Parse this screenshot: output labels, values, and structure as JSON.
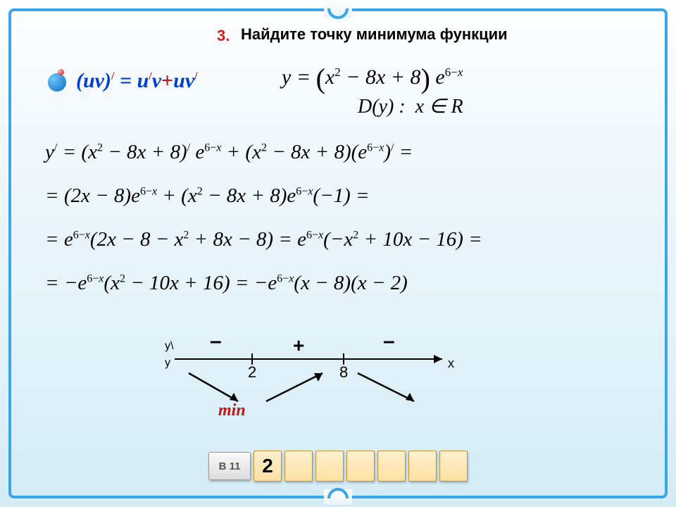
{
  "task": {
    "number": "3.",
    "title": "Найдите точку минимума функции"
  },
  "hint": {
    "formula_html": "(<i>uv</i>)<sup>/</sup> = <i>u</i><sup>/</sup><i>v</i><span class='plus'>+</span><i>uv</i><sup>/</sup>"
  },
  "function": {
    "expr_html": "<i>y</i> = <span class='paren'>(</span><i>x</i><sup>2</sup> − 8<i>x</i> + 8<span class='paren'>)</span> <i>e</i><sup>6−<i>x</i></sup>",
    "domain_html": "<i>D</i>(<i>y</i>) : &nbsp;<i>x</i> ∈ <i>R</i>"
  },
  "derivation": {
    "line1": "<i>y</i><sup>/</sup> = (<i>x</i><sup>2</sup> − 8<i>x</i> + 8)<sup>/</sup> <i>e</i><sup>6−<i>x</i></sup> + (<i>x</i><sup>2</sup> − 8<i>x</i> + 8)(<i>e</i><sup>6−<i>x</i></sup>)<sup>/</sup> =",
    "line2": "= (2<i>x</i> − 8)<i>e</i><sup>6−<i>x</i></sup> + (<i>x</i><sup>2</sup> − 8<i>x</i> + 8)<i>e</i><sup>6−<i>x</i></sup>(−1) =",
    "line3": "= <i>e</i><sup>6−<i>x</i></sup>(2<i>x</i> − 8 − <i>x</i><sup>2</sup> + 8<i>x</i> − 8) = <i>e</i><sup>6−<i>x</i></sup>(−<i>x</i><sup>2</sup> + 10<i>x</i> − 16) =",
    "line4": "= −<i>e</i><sup>6−<i>x</i></sup>(<i>x</i><sup>2</sup> − 10<i>x</i> + 16) = −<i>e</i><sup>6−<i>x</i></sup>(<i>x</i> − 8)(<i>x</i> − 2)"
  },
  "numberline": {
    "labels": {
      "yprime": "y\\",
      "y": "y",
      "x": "x"
    },
    "points": [
      "2",
      "8"
    ],
    "signs": [
      "–",
      "+",
      "–"
    ],
    "min_label": "min",
    "colors": {
      "axis": "#000000",
      "sign": "#000000",
      "min": "#c01818",
      "arrow": "#000000"
    }
  },
  "answer": {
    "button_label": "В 11",
    "cells": [
      "2",
      "",
      "",
      "",
      "",
      "",
      ""
    ]
  }
}
